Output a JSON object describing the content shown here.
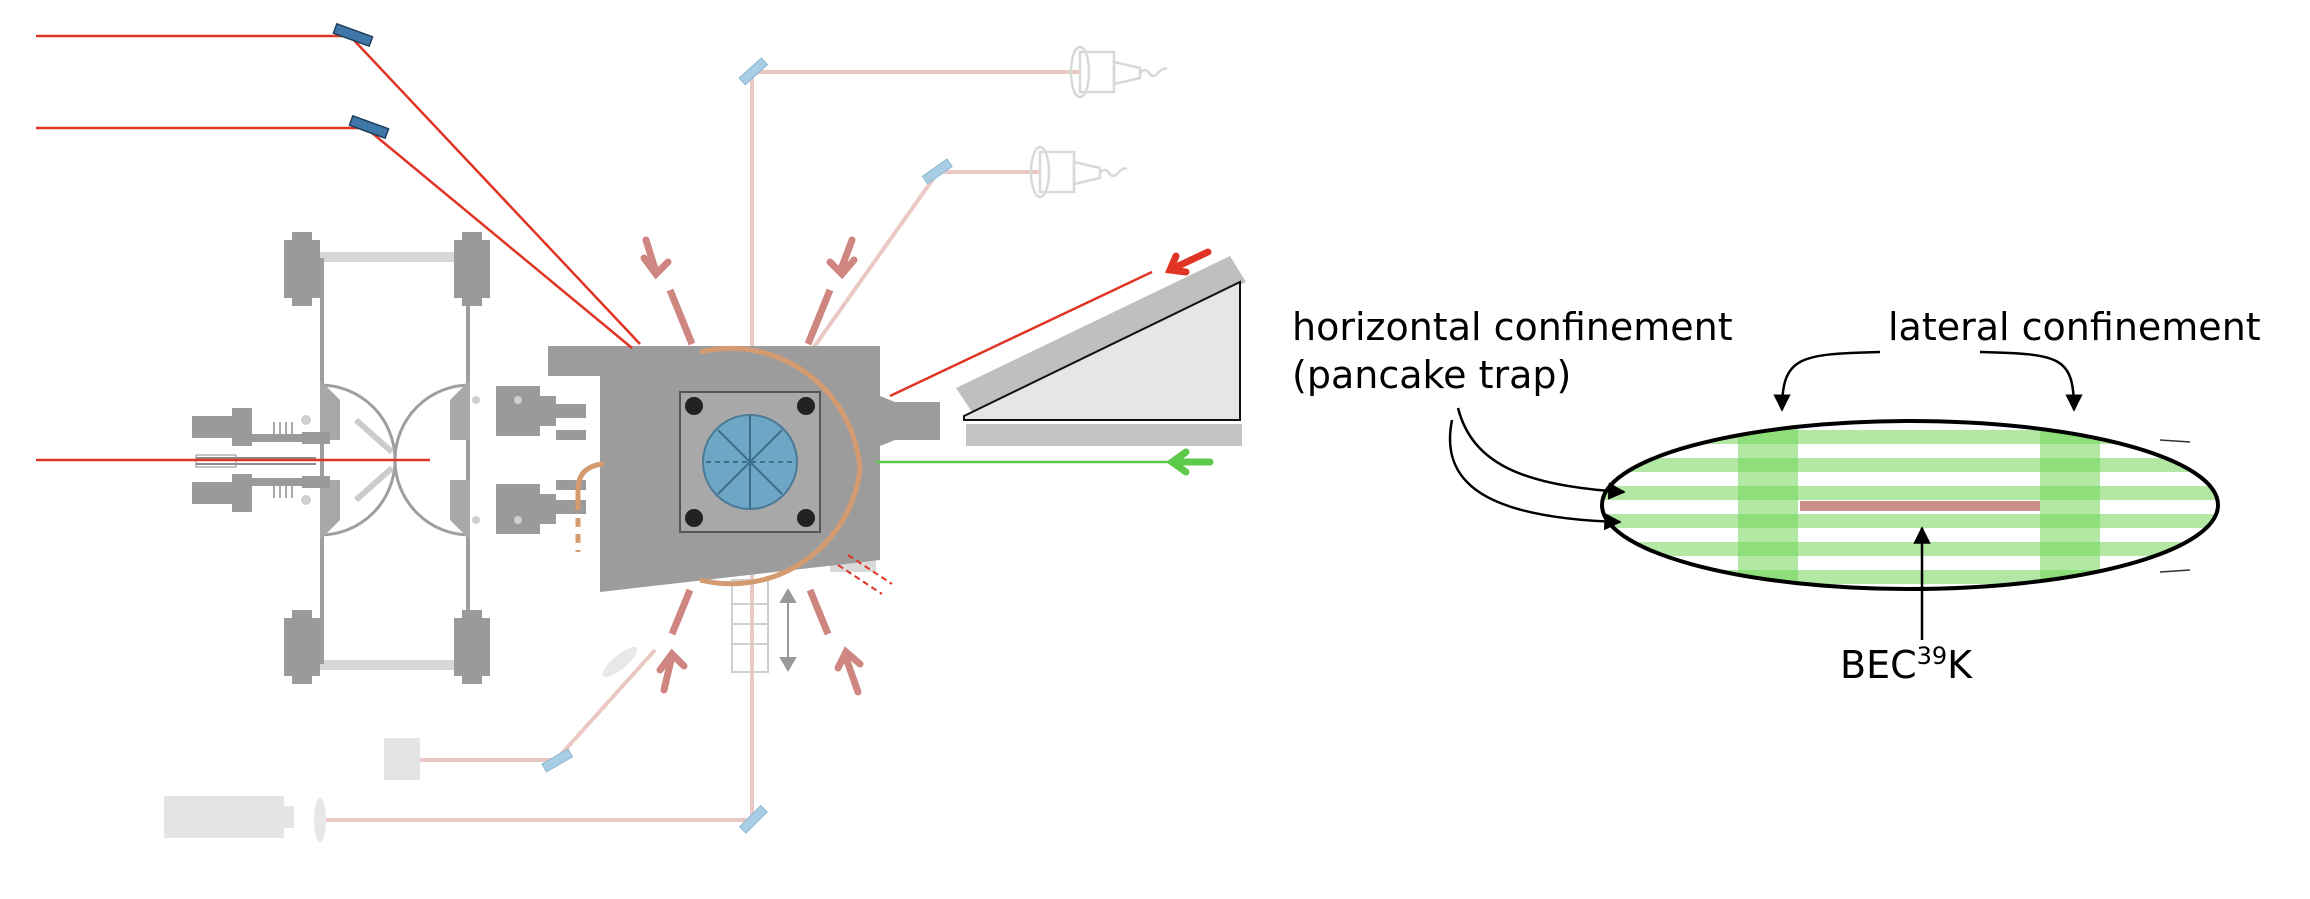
{
  "labels": {
    "horizontal_line1": "horizontal confinement",
    "horizontal_line2": "(pancake trap)",
    "lateral": "lateral confinement",
    "bec_prefix": "BEC",
    "bec_isotope": "39",
    "bec_element": "K"
  },
  "colors": {
    "red_beam": "#e03524",
    "faint_beam": "#eac9c4",
    "pink_arrow": "#cf8580",
    "green_beam": "#5cc94a",
    "chamber_gray": "#a0a0a0",
    "light_gray": "#c8c8c8",
    "copper": "#d49a70",
    "mirror_blue": "#3f78a8",
    "mirror_light": "#a9cde4",
    "viewport_blue": "#6ea7c6",
    "cloud_green": "#6fd65a",
    "bec_rose": "#c89088"
  }
}
